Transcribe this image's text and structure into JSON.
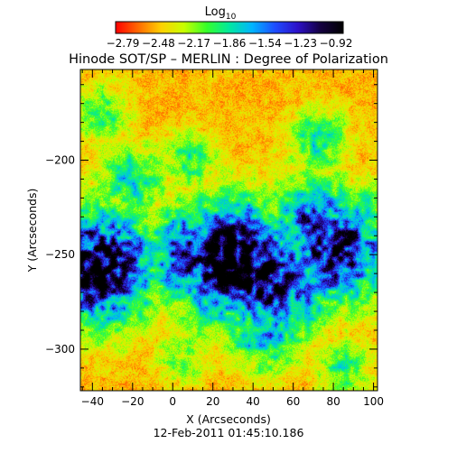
{
  "chart_data": {
    "type": "heatmap",
    "title": "Hinode SOT/SP – MERLIN : Degree of Polarization",
    "colorbar": {
      "label_main": "Log",
      "label_sub": "10",
      "ticks": [
        "−2.79",
        "−2.48",
        "−2.17",
        "−1.86",
        "−1.54",
        "−1.23",
        "−0.92"
      ],
      "range": [
        -2.79,
        -0.92
      ],
      "colormap": [
        "#ff0000",
        "#ff6a00",
        "#ffd000",
        "#c8ff00",
        "#36ff2a",
        "#00e8a0",
        "#00b4ff",
        "#1e4dff",
        "#2c10c8",
        "#140040",
        "#000000"
      ]
    },
    "xlabel": "X (Arcseconds)",
    "ylabel": "Y (Arcseconds)",
    "xlim": [
      -46,
      102
    ],
    "ylim": [
      -322,
      -152
    ],
    "xticks": [
      -40,
      -20,
      0,
      20,
      40,
      60,
      80,
      100
    ],
    "yticks": [
      -200,
      -250,
      -300
    ],
    "xtick_labels": [
      "−40",
      "−20",
      "0",
      "20",
      "40",
      "60",
      "80",
      "100"
    ],
    "ytick_labels": [
      "−200",
      "−250",
      "−300"
    ],
    "timestamp": "12-Feb-2011 01:45:10.186",
    "high_polarization_regions": [
      {
        "x": 30,
        "y": -253,
        "value": -1.0
      },
      {
        "x": 10,
        "y": -250,
        "value": -1.4
      },
      {
        "x": -36,
        "y": -256,
        "value": -1.1
      },
      {
        "x": 45,
        "y": -262,
        "value": -1.2
      },
      {
        "x": 82,
        "y": -248,
        "value": -1.3
      },
      {
        "x": 70,
        "y": -232,
        "value": -1.6
      },
      {
        "x": 60,
        "y": -272,
        "value": -1.7
      },
      {
        "x": 46,
        "y": -290,
        "value": -1.8
      },
      {
        "x": -20,
        "y": -210,
        "value": -2.0
      },
      {
        "x": 8,
        "y": -200,
        "value": -2.2
      },
      {
        "x": -35,
        "y": -175,
        "value": -2.2
      },
      {
        "x": 72,
        "y": -190,
        "value": -2.1
      },
      {
        "x": 92,
        "y": -230,
        "value": -2.0
      },
      {
        "x": 85,
        "y": -310,
        "value": -2.2
      },
      {
        "x": 5,
        "y": -305,
        "value": -2.3
      }
    ]
  }
}
